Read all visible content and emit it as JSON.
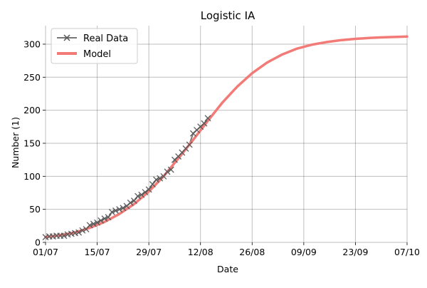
{
  "chart_data": {
    "type": "line",
    "title": "Logistic IA",
    "xlabel": "Date",
    "ylabel": "Number (1)",
    "x_start": "2020-07-01",
    "x_end": "2020-10-07",
    "x_ticks": [
      "01/07",
      "15/07",
      "29/07",
      "12/08",
      "26/08",
      "09/09",
      "23/09",
      "07/10"
    ],
    "y_ticks": [
      0,
      50,
      100,
      150,
      200,
      250,
      300
    ],
    "ylim": [
      0,
      328
    ],
    "grid": true,
    "legend_position": "top-left",
    "series": [
      {
        "name": "Real Data",
        "color": "#555555",
        "marker": "x",
        "points": [
          [
            "2020-07-01",
            8
          ],
          [
            "2020-07-02",
            9
          ],
          [
            "2020-07-03",
            9
          ],
          [
            "2020-07-04",
            10
          ],
          [
            "2020-07-05",
            10
          ],
          [
            "2020-07-06",
            10
          ],
          [
            "2020-07-07",
            12
          ],
          [
            "2020-07-08",
            13
          ],
          [
            "2020-07-09",
            14
          ],
          [
            "2020-07-10",
            15
          ],
          [
            "2020-07-11",
            18
          ],
          [
            "2020-07-12",
            20
          ],
          [
            "2020-07-13",
            26
          ],
          [
            "2020-07-14",
            28
          ],
          [
            "2020-07-15",
            30
          ],
          [
            "2020-07-16",
            33
          ],
          [
            "2020-07-17",
            36
          ],
          [
            "2020-07-18",
            38
          ],
          [
            "2020-07-19",
            46
          ],
          [
            "2020-07-20",
            48
          ],
          [
            "2020-07-21",
            50
          ],
          [
            "2020-07-22",
            52
          ],
          [
            "2020-07-23",
            55
          ],
          [
            "2020-07-24",
            60
          ],
          [
            "2020-07-25",
            63
          ],
          [
            "2020-07-26",
            70
          ],
          [
            "2020-07-27",
            72
          ],
          [
            "2020-07-28",
            76
          ],
          [
            "2020-07-29",
            80
          ],
          [
            "2020-07-30",
            88
          ],
          [
            "2020-07-31",
            95
          ],
          [
            "2020-08-01",
            97
          ],
          [
            "2020-08-02",
            100
          ],
          [
            "2020-08-03",
            107
          ],
          [
            "2020-08-04",
            110
          ],
          [
            "2020-08-05",
            125
          ],
          [
            "2020-08-06",
            130
          ],
          [
            "2020-08-07",
            136
          ],
          [
            "2020-08-08",
            142
          ],
          [
            "2020-08-09",
            148
          ],
          [
            "2020-08-10",
            165
          ],
          [
            "2020-08-11",
            170
          ],
          [
            "2020-08-12",
            175
          ],
          [
            "2020-08-13",
            180
          ],
          [
            "2020-08-14",
            188
          ]
        ]
      },
      {
        "name": "Model",
        "color": "#f27b77",
        "marker": "none",
        "points": [
          [
            "2020-07-01",
            8
          ],
          [
            "2020-07-05",
            11
          ],
          [
            "2020-07-09",
            15
          ],
          [
            "2020-07-13",
            22
          ],
          [
            "2020-07-17",
            31
          ],
          [
            "2020-07-21",
            43
          ],
          [
            "2020-07-25",
            58
          ],
          [
            "2020-07-29",
            77
          ],
          [
            "2020-08-02",
            100
          ],
          [
            "2020-08-06",
            127
          ],
          [
            "2020-08-10",
            155
          ],
          [
            "2020-08-14",
            184
          ],
          [
            "2020-08-18",
            212
          ],
          [
            "2020-08-22",
            236
          ],
          [
            "2020-08-26",
            256
          ],
          [
            "2020-08-30",
            272
          ],
          [
            "2020-09-03",
            284
          ],
          [
            "2020-09-07",
            293
          ],
          [
            "2020-09-11",
            299
          ],
          [
            "2020-09-15",
            303
          ],
          [
            "2020-09-19",
            306
          ],
          [
            "2020-09-23",
            308
          ],
          [
            "2020-09-27",
            309.5
          ],
          [
            "2020-10-01",
            310.5
          ],
          [
            "2020-10-05",
            311.2
          ],
          [
            "2020-10-07",
            311.5
          ]
        ]
      }
    ]
  }
}
